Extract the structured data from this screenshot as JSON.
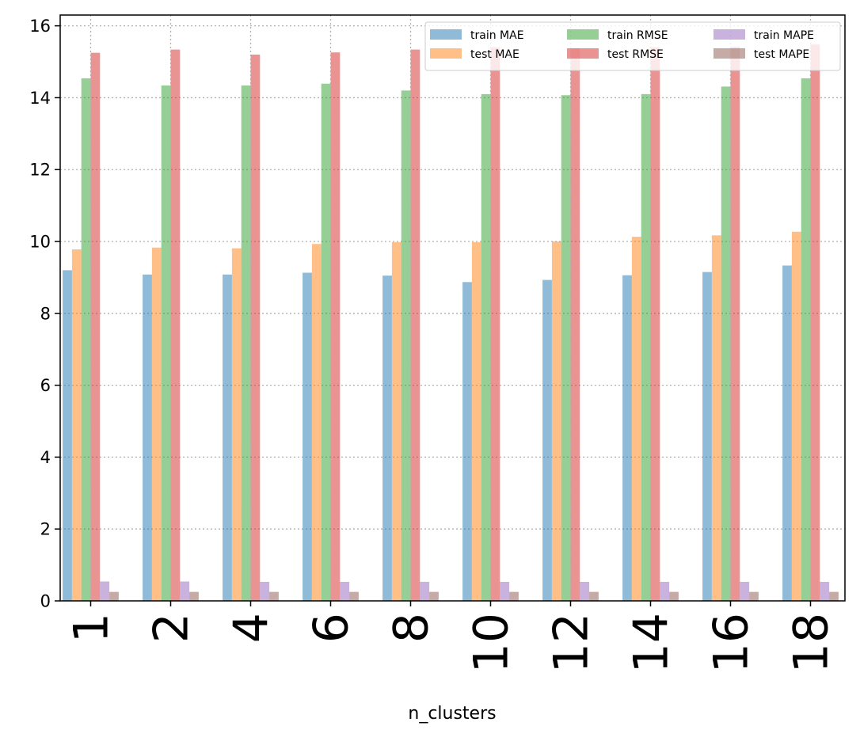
{
  "chart_data": {
    "type": "bar",
    "title": "",
    "xlabel": "n_clusters",
    "ylabel": "",
    "categories": [
      "1",
      "2",
      "4",
      "6",
      "8",
      "10",
      "12",
      "14",
      "16",
      "18"
    ],
    "ylim": [
      0,
      16.3
    ],
    "yticks": [
      "0",
      "2",
      "4",
      "6",
      "8",
      "10",
      "12",
      "14",
      "16"
    ],
    "grid": true,
    "legend_position": "top-right",
    "series": [
      {
        "name": "train MAE",
        "color": "#1f77b4",
        "values": [
          9.2,
          9.08,
          9.08,
          9.13,
          9.05,
          8.87,
          8.93,
          9.06,
          9.15,
          9.33
        ]
      },
      {
        "name": "test MAE",
        "color": "#ff7f0e",
        "values": [
          9.78,
          9.83,
          9.81,
          9.93,
          9.98,
          9.98,
          10.0,
          10.13,
          10.17,
          10.27
        ]
      },
      {
        "name": "train RMSE",
        "color": "#2ca02c",
        "values": [
          14.54,
          14.34,
          14.34,
          14.39,
          14.2,
          14.1,
          14.07,
          14.1,
          14.31,
          14.54
        ]
      },
      {
        "name": "test RMSE",
        "color": "#d62728",
        "values": [
          15.25,
          15.34,
          15.2,
          15.26,
          15.34,
          15.4,
          15.38,
          15.4,
          15.42,
          15.48
        ]
      },
      {
        "name": "train MAPE",
        "color": "#9467bd",
        "values": [
          0.54,
          0.54,
          0.53,
          0.53,
          0.53,
          0.53,
          0.53,
          0.53,
          0.53,
          0.53
        ]
      },
      {
        "name": "test MAPE",
        "color": "#8c564b",
        "values": [
          0.25,
          0.25,
          0.25,
          0.25,
          0.25,
          0.25,
          0.25,
          0.25,
          0.25,
          0.25
        ]
      }
    ]
  }
}
